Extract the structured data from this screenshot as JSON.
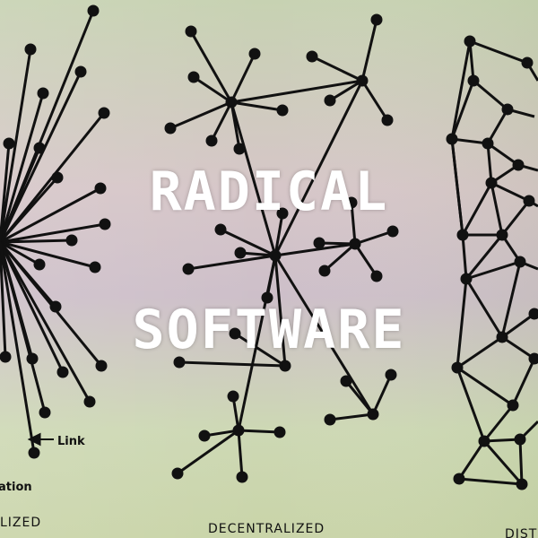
{
  "title": {
    "line1": "RADICAL",
    "line2": "SOFTWARE"
  },
  "labels": {
    "link": "Link",
    "station_partial": "ation",
    "centralized_partial": "LIZED",
    "decentralized": "DECENTRALIZED",
    "distributed_partial": "DIST"
  },
  "colors": {
    "ink": "#111111",
    "title": "#ffffff"
  }
}
